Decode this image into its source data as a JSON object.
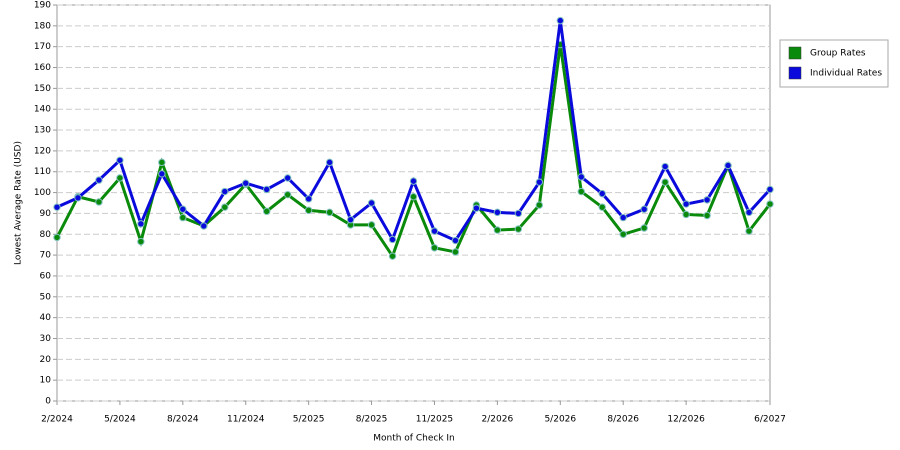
{
  "chart_data": {
    "type": "line",
    "x_label": "Month of Check In",
    "y_label": "Lowest Average Rate (USD)",
    "categories": [
      "2/2024",
      null,
      null,
      "5/2024",
      null,
      null,
      "8/2024",
      null,
      null,
      "11/2024",
      null,
      null,
      "5/2025",
      null,
      null,
      "8/2025",
      null,
      null,
      "11/2025",
      null,
      null,
      "2/2026",
      null,
      null,
      "5/2026",
      null,
      null,
      "8/2026",
      null,
      null,
      "12/2026",
      null,
      null,
      null,
      "6/2027"
    ],
    "series": [
      {
        "name": "Group Rates",
        "color": "#0a8a0a",
        "values": [
          78.5,
          98,
          95.5,
          107,
          76.5,
          114.5,
          88,
          84,
          93,
          104,
          91,
          99,
          91.5,
          90.5,
          84.5,
          84.5,
          69.5,
          98,
          73.5,
          71.5,
          94,
          82,
          82.5,
          94,
          171,
          100.5,
          93,
          80,
          83,
          105,
          89.5,
          89,
          113,
          81.5,
          94.5
        ]
      },
      {
        "name": "Individual Rates",
        "color": "#0a0adc",
        "values": [
          93,
          97.5,
          106,
          115.5,
          85,
          109,
          92,
          84,
          100.5,
          104.5,
          101.5,
          107,
          97,
          114.5,
          87,
          95,
          77.5,
          105.5,
          81.5,
          77,
          92.5,
          90.5,
          90,
          105,
          182.5,
          107.5,
          99.5,
          88,
          92,
          112.5,
          94.5,
          96.5,
          113,
          90.5,
          101.5
        ]
      }
    ],
    "ylim": [
      0,
      190
    ],
    "yticks": [
      0,
      10,
      20,
      30,
      40,
      50,
      60,
      70,
      80,
      90,
      100,
      110,
      120,
      130,
      140,
      150,
      160,
      170,
      180,
      190
    ],
    "grid": true,
    "legend": "right"
  }
}
